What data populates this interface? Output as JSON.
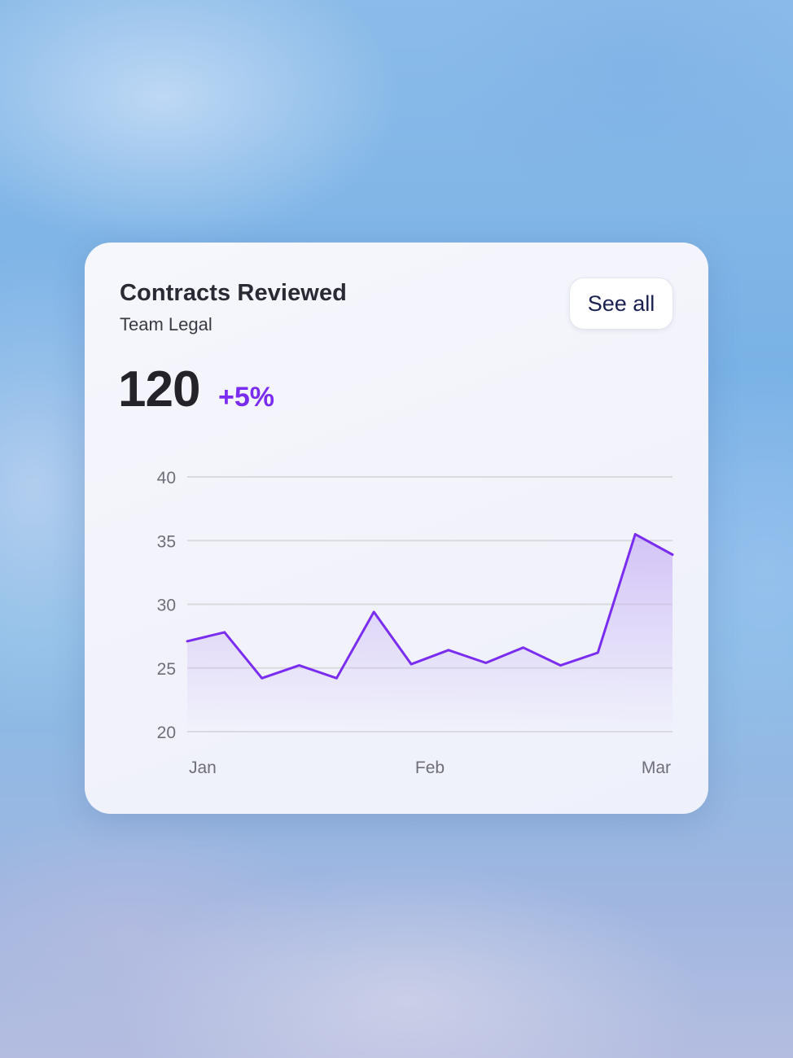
{
  "card": {
    "title": "Contracts Reviewed",
    "subtitle": "Team Legal",
    "see_all_label": "See all",
    "metric_value": "120",
    "metric_change": "+5%"
  },
  "colors": {
    "line": "#7a2df0",
    "area_top": "#c9b4f5",
    "grid": "#d9d9de",
    "delta": "#7a2df0"
  },
  "chart_data": {
    "type": "area",
    "x_tick_labels": [
      "Jan",
      "Feb",
      "Mar"
    ],
    "y_ticks": [
      20,
      25,
      30,
      35,
      40
    ],
    "ylim": [
      20,
      40
    ],
    "grid": true,
    "series": [
      {
        "values": [
          27.1,
          27.8,
          24.2,
          25.2,
          24.2,
          29.4,
          25.3,
          26.4,
          25.4,
          26.6,
          25.2,
          26.2,
          35.5,
          33.9
        ]
      }
    ]
  }
}
